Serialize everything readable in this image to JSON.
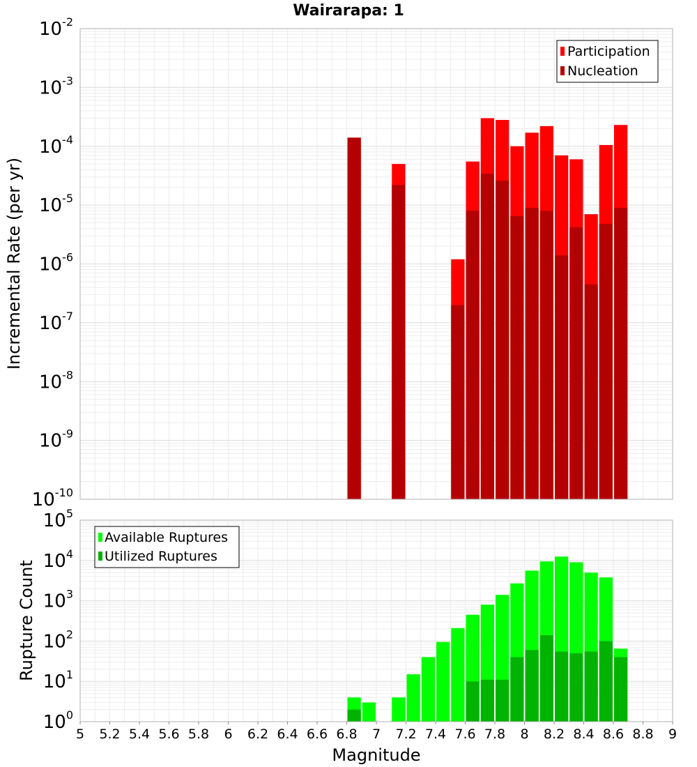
{
  "chart_data": [
    {
      "type": "bar",
      "title": "Wairarapa: 1",
      "ylabel": "Incremental Rate (per yr)",
      "xlabel": "",
      "y_scale": "log",
      "ylim": [
        1e-10,
        0.01
      ],
      "xlim": [
        5,
        9
      ],
      "bin_width": 0.1,
      "legend_position": "top-right",
      "grid": true,
      "series": [
        {
          "name": "Participation",
          "color": "#ff0000",
          "x": [
            6.85,
            7.15,
            7.55,
            7.65,
            7.75,
            7.85,
            7.95,
            8.05,
            8.15,
            8.25,
            8.35,
            8.45,
            8.55,
            8.65
          ],
          "values": [
            0.00014,
            5e-05,
            1.2e-06,
            5.5e-05,
            0.0003,
            0.00028,
            0.0001,
            0.00017,
            0.00022,
            7e-05,
            6e-05,
            7e-06,
            0.000105,
            0.00023
          ]
        },
        {
          "name": "Nucleation",
          "color": "#b30000",
          "x": [
            6.85,
            7.15,
            7.55,
            7.65,
            7.75,
            7.85,
            7.95,
            8.05,
            8.15,
            8.25,
            8.35,
            8.45,
            8.55,
            8.65
          ],
          "values": [
            0.00014,
            2.2e-05,
            2e-07,
            8e-06,
            3.4e-05,
            2.6e-05,
            6.5e-06,
            9e-06,
            8e-06,
            1.4e-06,
            4.2e-06,
            4.5e-07,
            4.8e-06,
            9e-06
          ]
        }
      ]
    },
    {
      "type": "bar",
      "title": "",
      "ylabel": "Rupture Count",
      "xlabel": "Magnitude",
      "y_scale": "log",
      "ylim": [
        1,
        100000.0
      ],
      "xlim": [
        5,
        9
      ],
      "bin_width": 0.1,
      "x_ticks": [
        "5",
        "5.2",
        "5.4",
        "5.6",
        "5.8",
        "6",
        "6.2",
        "6.4",
        "6.6",
        "6.8",
        "7",
        "7.2",
        "7.4",
        "7.6",
        "7.8",
        "8",
        "8.2",
        "8.4",
        "8.6",
        "8.8",
        "9"
      ],
      "legend_position": "top-left",
      "grid": true,
      "series": [
        {
          "name": "Available Ruptures",
          "color": "#00ff00",
          "x": [
            6.85,
            6.95,
            7.15,
            7.25,
            7.35,
            7.45,
            7.55,
            7.65,
            7.75,
            7.85,
            7.95,
            8.05,
            8.15,
            8.25,
            8.35,
            8.45,
            8.55,
            8.65
          ],
          "values": [
            4,
            3,
            4,
            15,
            40,
            95,
            210,
            450,
            800,
            1400,
            2700,
            5600,
            9500,
            12500,
            9000,
            5000,
            3800,
            65
          ]
        },
        {
          "name": "Utilized Ruptures",
          "color": "#00b300",
          "x": [
            6.85,
            7.15,
            7.55,
            7.65,
            7.75,
            7.85,
            7.95,
            8.05,
            8.15,
            8.25,
            8.35,
            8.45,
            8.55,
            8.65
          ],
          "values": [
            2,
            1,
            1,
            10,
            11,
            11,
            40,
            60,
            140,
            55,
            50,
            55,
            100,
            40
          ]
        }
      ]
    }
  ]
}
